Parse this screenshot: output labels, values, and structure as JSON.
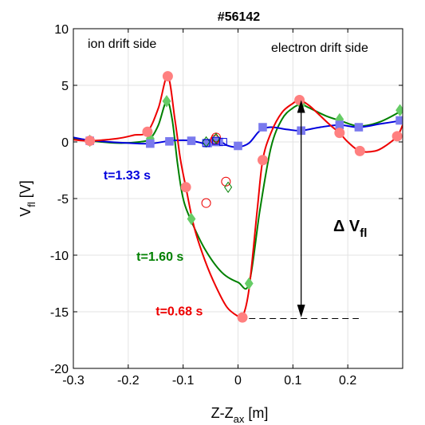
{
  "chart_data": {
    "type": "line",
    "title": "#56142",
    "xlabel": {
      "main": "Z-Z",
      "sub": "ax",
      "unit": " [m]"
    },
    "ylabel": {
      "main": "V",
      "sub": "fl",
      "unit": " [V]"
    },
    "xlim": [
      -0.3,
      0.3
    ],
    "ylim": [
      -20,
      10
    ],
    "xticks": [
      "-0.3",
      "-0.2",
      "-0.1",
      "0",
      "0.1",
      "0.2"
    ],
    "xtick_values": [
      -0.3,
      -0.2,
      -0.1,
      0,
      0.1,
      0.2
    ],
    "yticks": [
      "-20",
      "-15",
      "-10",
      "-5",
      "0",
      "5",
      "10"
    ],
    "ytick_values": [
      -20,
      -15,
      -10,
      -5,
      0,
      5,
      10
    ],
    "grid": true,
    "annotations": {
      "ion_side": "ion drift side",
      "electron_side": "electron drift side",
      "delta": "Δ V",
      "delta_sub": "fl"
    },
    "delta_arrow": {
      "x": 0.115,
      "y_top": 3.7,
      "y_bottom": -15.5
    },
    "delta_dashed": {
      "x_start": 0.02,
      "x_end": 0.22,
      "y": -15.6
    },
    "series": [
      {
        "name": "t=1.33 s",
        "color": "#0000dd",
        "marker_color": "#7a7aee",
        "marker": "square",
        "points": {
          "x": [
            -0.27,
            -0.16,
            -0.125,
            -0.085,
            -0.055,
            -0.04,
            -0.035,
            0.0,
            0.045,
            0.115,
            0.185,
            0.22,
            0.295
          ],
          "y": [
            0.1,
            -0.15,
            0.05,
            0.1,
            -0.1,
            0.0,
            0.0,
            -0.35,
            1.3,
            1.0,
            1.5,
            1.3,
            1.9
          ]
        },
        "curve": {
          "x": [
            -0.3,
            -0.27,
            -0.2,
            -0.16,
            -0.125,
            -0.1,
            -0.085,
            -0.07,
            -0.055,
            -0.045,
            -0.035,
            -0.02,
            0.0,
            0.02,
            0.04,
            0.06,
            0.09,
            0.115,
            0.15,
            0.185,
            0.22,
            0.26,
            0.3
          ],
          "y": [
            0.4,
            0.15,
            -0.1,
            -0.15,
            0.1,
            0.15,
            0.1,
            -0.05,
            -0.2,
            0.1,
            0.15,
            -0.3,
            -0.45,
            -0.1,
            1.0,
            1.3,
            1.1,
            1.0,
            1.3,
            1.5,
            1.3,
            1.6,
            1.9
          ]
        },
        "label_pos": {
          "x": -0.245,
          "y": -3.3
        }
      },
      {
        "name": "t=1.60 s",
        "color": "#008000",
        "marker_color": "#66cc66",
        "marker": "diamond",
        "points": {
          "x": [
            -0.27,
            -0.16,
            -0.13,
            -0.085,
            0.02,
            0.115,
            0.185,
            0.295
          ],
          "y": [
            0.1,
            0.3,
            3.6,
            -6.8,
            -12.5,
            3.3,
            2.0,
            2.8
          ]
        },
        "curve": {
          "x": [
            -0.3,
            -0.27,
            -0.22,
            -0.18,
            -0.16,
            -0.145,
            -0.13,
            -0.12,
            -0.11,
            -0.1,
            -0.085,
            -0.06,
            -0.03,
            0.0,
            0.02,
            0.04,
            0.06,
            0.08,
            0.1,
            0.115,
            0.13,
            0.16,
            0.185,
            0.22,
            0.26,
            0.3
          ],
          "y": [
            0.3,
            0.1,
            -0.1,
            0.0,
            0.3,
            1.5,
            3.6,
            2.0,
            -2.0,
            -5.0,
            -7.0,
            -9.5,
            -11.5,
            -12.4,
            -12.5,
            -6.0,
            -0.5,
            2.0,
            3.0,
            3.3,
            3.0,
            2.3,
            1.9,
            1.4,
            1.8,
            2.8
          ]
        },
        "label_pos": {
          "x": -0.185,
          "y": -10.5
        }
      },
      {
        "name": "t=0.68 s",
        "color": "#ee0000",
        "marker_color": "#ff8080",
        "marker": "circle",
        "points": {
          "x": [
            -0.27,
            -0.165,
            -0.128,
            -0.095,
            0.008,
            0.045,
            0.112,
            0.185,
            0.222,
            0.29
          ],
          "y": [
            0.1,
            0.9,
            5.8,
            -4.0,
            -15.5,
            -1.6,
            3.7,
            0.8,
            -0.8,
            0.5
          ]
        },
        "curve": {
          "x": [
            -0.3,
            -0.27,
            -0.22,
            -0.19,
            -0.165,
            -0.145,
            -0.128,
            -0.115,
            -0.105,
            -0.095,
            -0.08,
            -0.06,
            -0.04,
            -0.02,
            0.0,
            0.008,
            0.02,
            0.035,
            0.045,
            0.06,
            0.08,
            0.1,
            0.112,
            0.13,
            0.15,
            0.17,
            0.185,
            0.2,
            0.222,
            0.25,
            0.27,
            0.29,
            0.3
          ],
          "y": [
            0.2,
            0.1,
            0.3,
            0.6,
            0.9,
            3.0,
            5.8,
            2.0,
            -1.5,
            -4.0,
            -7.5,
            -10.5,
            -12.8,
            -14.6,
            -15.4,
            -15.5,
            -13.0,
            -6.0,
            -1.6,
            0.8,
            2.6,
            3.4,
            3.7,
            3.2,
            2.3,
            1.4,
            0.8,
            0.0,
            -0.8,
            -0.8,
            -0.3,
            0.5,
            1.5
          ]
        },
        "label_pos": {
          "x": -0.15,
          "y": -15.3
        }
      }
    ],
    "open_markers": [
      {
        "shape": "circle",
        "color": "#ee0000",
        "points": {
          "x": [
            -0.058,
            -0.022,
            -0.042,
            -0.04
          ],
          "y": [
            -5.4,
            -3.5,
            0.2,
            0.4
          ]
        }
      },
      {
        "shape": "diamond",
        "color": "#008000",
        "points": {
          "x": [
            -0.058,
            -0.018,
            -0.04
          ],
          "y": [
            0.0,
            -4.0,
            0.3
          ]
        }
      },
      {
        "shape": "square",
        "color": "#0000dd",
        "points": {
          "x": [
            -0.058,
            -0.04,
            -0.027
          ],
          "y": [
            -0.1,
            0.1,
            0.0
          ]
        }
      }
    ]
  }
}
